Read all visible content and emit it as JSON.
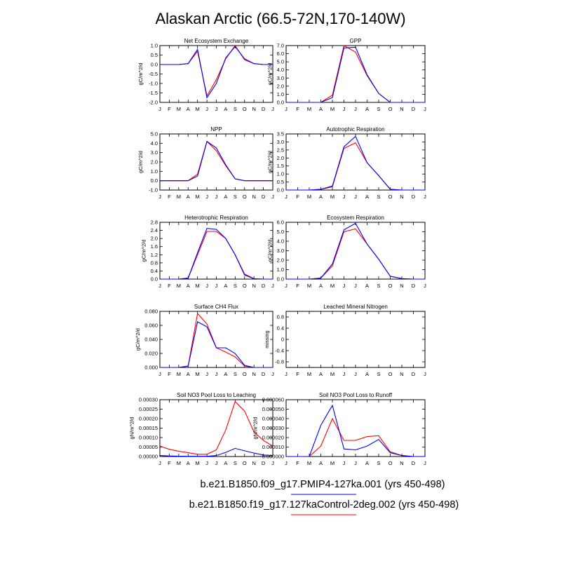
{
  "figure": {
    "title": "Alaskan Arctic (66.5-72N,170-140W)",
    "legend": [
      {
        "label": "b.e21.B1850.f09_g17.PMIP4-127ka.001 (yrs 450-498)",
        "color": "#0000ff"
      },
      {
        "label": "b.e21.B1850.f19_g17.127kaControl-2deg.002 (yrs 450-498)",
        "color": "#ff0000"
      }
    ]
  },
  "chart_data": [
    {
      "type": "line",
      "title": "Net Ecosystem Exchange",
      "ylabel": "gC/m^2/d",
      "x": [
        "J",
        "F",
        "M",
        "A",
        "M",
        "J",
        "J",
        "A",
        "S",
        "O",
        "N",
        "D",
        "J"
      ],
      "ylim": [
        -2.0,
        1.0
      ],
      "yticks": [
        "-2.0",
        "-1.5",
        "-1.0",
        "-0.5",
        "0.0",
        "0.5",
        "1.0"
      ],
      "series": [
        {
          "color": "#ff0000",
          "values": [
            0.0,
            0.0,
            0.0,
            0.05,
            0.7,
            -1.65,
            -0.8,
            0.3,
            1.0,
            0.25,
            0.05,
            0.0,
            0.0
          ]
        },
        {
          "color": "#0000ff",
          "values": [
            0.0,
            0.0,
            0.0,
            0.05,
            0.8,
            -1.75,
            -1.0,
            0.35,
            0.95,
            0.3,
            0.05,
            0.0,
            0.0
          ]
        }
      ]
    },
    {
      "type": "line",
      "title": "GPP",
      "ylabel": "gC/m^2/d",
      "x": [
        "J",
        "F",
        "M",
        "A",
        "M",
        "J",
        "J",
        "A",
        "S",
        "O",
        "N",
        "D",
        "J"
      ],
      "ylim": [
        0.0,
        7.0
      ],
      "yticks": [
        "0.0",
        "1.0",
        "2.0",
        "3.0",
        "4.0",
        "5.0",
        "6.0",
        "7.0"
      ],
      "series": [
        {
          "color": "#ff0000",
          "values": [
            0,
            0,
            0,
            0,
            0.9,
            7.0,
            6.2,
            3.3,
            1.1,
            0,
            0,
            0,
            0
          ]
        },
        {
          "color": "#0000ff",
          "values": [
            0,
            0,
            0,
            0,
            0.6,
            6.7,
            6.8,
            3.4,
            1.1,
            0,
            0,
            0,
            0
          ]
        }
      ]
    },
    {
      "type": "line",
      "title": "NPP",
      "ylabel": "gC/m^2/d",
      "x": [
        "J",
        "F",
        "M",
        "A",
        "M",
        "J",
        "J",
        "A",
        "S",
        "O",
        "N",
        "D",
        "J"
      ],
      "ylim": [
        -1.0,
        5.0
      ],
      "yticks": [
        "-1.0",
        "0.0",
        "1.0",
        "2.0",
        "3.0",
        "4.0",
        "5.0"
      ],
      "series": [
        {
          "color": "#ff0000",
          "values": [
            0,
            0,
            0,
            0,
            0.7,
            4.2,
            3.2,
            1.6,
            0.2,
            0,
            0,
            0,
            0
          ]
        },
        {
          "color": "#0000ff",
          "values": [
            0,
            0,
            0,
            0,
            0.5,
            4.2,
            3.5,
            1.7,
            0.2,
            0,
            0,
            0,
            0
          ]
        }
      ]
    },
    {
      "type": "line",
      "title": "Autotrophic Respiration",
      "ylabel": "gC/m^2/d",
      "x": [
        "J",
        "F",
        "M",
        "A",
        "M",
        "J",
        "J",
        "A",
        "S",
        "O",
        "N",
        "D",
        "J"
      ],
      "ylim": [
        0.0,
        3.5
      ],
      "yticks": [
        "0.0",
        "0.5",
        "1.0",
        "1.5",
        "2.0",
        "2.5",
        "3.0",
        "3.5"
      ],
      "series": [
        {
          "color": "#ff0000",
          "values": [
            0,
            0,
            0,
            0.05,
            0.2,
            2.6,
            2.95,
            1.7,
            0.9,
            0.05,
            0,
            0,
            0
          ]
        },
        {
          "color": "#0000ff",
          "values": [
            0,
            0,
            0,
            0.05,
            0.25,
            2.7,
            3.35,
            1.7,
            0.9,
            0.05,
            0,
            0,
            0
          ]
        }
      ]
    },
    {
      "type": "line",
      "title": "Heterotrophic Respiration",
      "ylabel": "gC/m^2/d",
      "x": [
        "J",
        "F",
        "M",
        "A",
        "M",
        "J",
        "J",
        "A",
        "S",
        "O",
        "N",
        "D",
        "J"
      ],
      "ylim": [
        0.0,
        2.8
      ],
      "yticks": [
        "0.0",
        "0.4",
        "0.8",
        "1.2",
        "1.6",
        "2.0",
        "2.4",
        "2.8"
      ],
      "series": [
        {
          "color": "#ff0000",
          "values": [
            0,
            0,
            0,
            0.05,
            1.2,
            2.35,
            2.35,
            2.0,
            1.2,
            0.25,
            0.02,
            0,
            0
          ]
        },
        {
          "color": "#0000ff",
          "values": [
            0,
            0,
            0,
            0.05,
            1.3,
            2.5,
            2.45,
            2.0,
            1.2,
            0.2,
            0.02,
            0,
            0
          ]
        }
      ]
    },
    {
      "type": "line",
      "title": "Ecosystem Respiration",
      "ylabel": "gC/m^2/d",
      "x": [
        "J",
        "F",
        "M",
        "A",
        "M",
        "J",
        "J",
        "A",
        "S",
        "O",
        "N",
        "D",
        "J"
      ],
      "ylim": [
        0.0,
        6.0
      ],
      "yticks": [
        "0.0",
        "1.0",
        "2.0",
        "3.0",
        "4.0",
        "5.0",
        "6.0"
      ],
      "series": [
        {
          "color": "#ff0000",
          "values": [
            0,
            0,
            0,
            0.1,
            1.4,
            5.0,
            5.3,
            3.7,
            2.1,
            0.3,
            0.05,
            0,
            0
          ]
        },
        {
          "color": "#0000ff",
          "values": [
            0,
            0,
            0,
            0.1,
            1.6,
            5.2,
            5.9,
            3.7,
            2.1,
            0.3,
            0.05,
            0,
            0
          ]
        }
      ]
    },
    {
      "type": "line",
      "title": "Surface CH4 Flux",
      "ylabel": "gC/m^2/d",
      "x": [
        "J",
        "F",
        "M",
        "A",
        "M",
        "J",
        "J",
        "A",
        "S",
        "O",
        "N",
        "D",
        "J"
      ],
      "ylim": [
        0.0,
        0.08
      ],
      "yticks": [
        "0.000",
        "0.020",
        "0.040",
        "0.060",
        "0.080"
      ],
      "series": [
        {
          "color": "#ff0000",
          "values": [
            0,
            0,
            0,
            0.002,
            0.077,
            0.062,
            0.028,
            0.022,
            0.015,
            0.002,
            0,
            0,
            0
          ]
        },
        {
          "color": "#0000ff",
          "values": [
            0,
            0,
            0,
            0.002,
            0.065,
            0.058,
            0.028,
            0.028,
            0.02,
            0.003,
            0,
            0,
            0
          ]
        }
      ]
    },
    {
      "type": "line",
      "title": "Leached Mineral Nitrogen",
      "ylabel": "missing",
      "x": [
        "J",
        "F",
        "M",
        "A",
        "M",
        "J",
        "J",
        "A",
        "S",
        "O",
        "N",
        "D",
        "J"
      ],
      "ylim": [
        -1.0,
        1.0
      ],
      "yticks": [
        "-0.8",
        "-0.4",
        "0",
        "0.4",
        "0.8"
      ],
      "yticks_at": [
        -0.8,
        -0.4,
        0,
        0.4,
        0.8
      ],
      "series": []
    },
    {
      "type": "line",
      "title": "Soil NO3 Pool Loss to Leaching",
      "ylabel": "gN/m^2/d",
      "x": [
        "J",
        "F",
        "M",
        "A",
        "M",
        "J",
        "J",
        "A",
        "S",
        "O",
        "N",
        "D",
        "J"
      ],
      "ylim": [
        0.0,
        0.0003
      ],
      "yticks": [
        "0.00000",
        "0.00005",
        "0.00010",
        "0.00015",
        "0.00020",
        "0.00025",
        "0.00030"
      ],
      "series": [
        {
          "color": "#ff0000",
          "values": [
            5.5e-05,
            3.8e-05,
            2.8e-05,
            2e-05,
            1.2e-05,
            1.2e-05,
            3.5e-05,
            0.00014,
            0.00029,
            0.00024,
            0.00013,
            8.5e-05,
            5.5e-05
          ]
        },
        {
          "color": "#0000ff",
          "values": [
            5e-06,
            3e-06,
            2e-06,
            1e-06,
            1e-06,
            1e-06,
            5e-06,
            2.2e-05,
            4.3e-05,
            3e-05,
            1.8e-05,
            8e-06,
            5e-06
          ]
        }
      ]
    },
    {
      "type": "line",
      "title": "Soil NO3 Pool Loss to Runoff",
      "ylabel": "gN/m^2/d",
      "x": [
        "J",
        "F",
        "M",
        "A",
        "M",
        "J",
        "J",
        "A",
        "S",
        "O",
        "N",
        "D",
        "J"
      ],
      "ylim": [
        0.0,
        6e-05
      ],
      "yticks": [
        "0.000000",
        "0.000010",
        "0.000020",
        "0.000030",
        "0.000040",
        "0.000050",
        "0.000060"
      ],
      "series": [
        {
          "color": "#ff0000",
          "values": [
            0,
            0,
            0,
            1.1e-05,
            4e-05,
            1.7e-05,
            1.7e-05,
            2.1e-05,
            2.2e-05,
            5e-06,
            1e-06,
            0,
            0
          ]
        },
        {
          "color": "#0000ff",
          "values": [
            0,
            0,
            0,
            3.3e-05,
            5.4e-05,
            8e-06,
            7e-06,
            1.1e-05,
            1.8e-05,
            4e-06,
            1e-06,
            0,
            0
          ]
        }
      ]
    }
  ]
}
